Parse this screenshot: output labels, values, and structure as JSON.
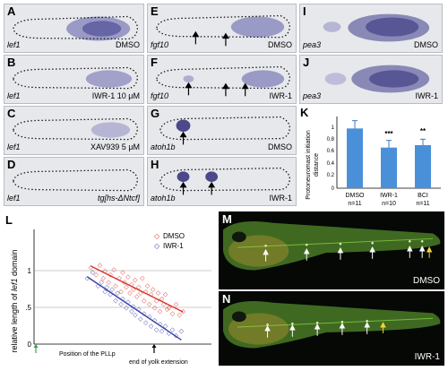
{
  "figure": {
    "panel_A": {
      "label": "A",
      "gene": "lef1",
      "treatment": "DMSO"
    },
    "panel_B": {
      "label": "B",
      "gene": "lef1",
      "treatment": "IWR-1 10 μM"
    },
    "panel_C": {
      "label": "C",
      "gene": "lef1",
      "treatment": "XAV939 5 μM"
    },
    "panel_D": {
      "label": "D",
      "gene": "lef1",
      "treatment": "tg[hs-ΔNtcf]"
    },
    "panel_E": {
      "label": "E",
      "gene": "fgf10",
      "treatment": "DMSO"
    },
    "panel_F": {
      "label": "F",
      "gene": "fgf10",
      "treatment": "IWR-1"
    },
    "panel_G": {
      "label": "G",
      "gene": "atoh1b",
      "treatment": "DMSO"
    },
    "panel_H": {
      "label": "H",
      "gene": "atoh1b",
      "treatment": "IWR-1"
    },
    "panel_I": {
      "label": "I",
      "gene": "pea3",
      "treatment": "DMSO"
    },
    "panel_J": {
      "label": "J",
      "gene": "pea3",
      "treatment": "IWR-1"
    },
    "panel_M": {
      "label": "M",
      "treatment": "DMSO"
    },
    "panel_N": {
      "label": "N",
      "treatment": "IWR-1"
    },
    "panel_K": {
      "label": "K",
      "ylabel_line1": "Protoneuromast initiation",
      "ylabel_line2": "distance",
      "ytick_1": "1",
      "ytick_08": "0.8",
      "ytick_06": "0.6",
      "ytick_04": "0.4",
      "ytick_02": "0.2",
      "ytick_0": "0",
      "cat_0": "DMSO",
      "n_0": "n=11",
      "cat_1": "IWR-1",
      "n_1": "n=10",
      "cat_2": "BCI",
      "n_2": "n=11",
      "sig_1": "***",
      "sig_2": "**"
    },
    "panel_L": {
      "label": "L",
      "ylabel_pre": "relative length of ",
      "ylabel_gene": "lef1",
      "ylabel_post": " domain",
      "ytick_1": "1",
      "ytick_05": ".5",
      "ytick_0": "0",
      "legend_dmso": "DMSO",
      "legend_iwr": "IWR-1",
      "xlabel_pllp": "Position of the PLLp",
      "xlabel_yolk": "end of yolk extension"
    }
  },
  "chart_data": [
    {
      "type": "bar",
      "title": "",
      "ylabel": "Protoneuromast initiation distance",
      "categories": [
        "DMSO",
        "IWR-1",
        "BCI"
      ],
      "n": [
        "n=11",
        "n=10",
        "n=11"
      ],
      "values": [
        1.0,
        0.68,
        0.72
      ],
      "errors": [
        0.13,
        0.12,
        0.1
      ],
      "significance": [
        "",
        "***",
        "**"
      ],
      "ylim": [
        0,
        1.2
      ],
      "color": "#4a90d9"
    },
    {
      "type": "scatter",
      "ylabel": "relative length of lef1 domain",
      "xlabel": "Position of the PLLp",
      "ylim": [
        0,
        1.3
      ],
      "xlim": [
        0,
        10
      ],
      "series": [
        {
          "name": "DMSO",
          "color": "#d9352b",
          "x": [
            3.2,
            3.5,
            3.7,
            3.9,
            4.0,
            4.2,
            4.3,
            4.5,
            4.6,
            4.8,
            4.9,
            5.0,
            5.1,
            5.2,
            5.3,
            5.4,
            5.5,
            5.6,
            5.7,
            5.8,
            5.9,
            6.0,
            6.1,
            6.2,
            6.3,
            6.4,
            6.5,
            6.6,
            6.7,
            6.8,
            6.9,
            7.0,
            7.1,
            7.2,
            7.3,
            7.4,
            7.5,
            7.6,
            7.8,
            8.0,
            8.2,
            8.4
          ],
          "y": [
            1.05,
            0.95,
            1.08,
            0.9,
            1.0,
            0.85,
            0.95,
            1.02,
            0.8,
            0.9,
            0.72,
            0.98,
            0.85,
            0.78,
            0.92,
            0.7,
            0.82,
            0.75,
            0.88,
            0.65,
            0.78,
            0.7,
            0.9,
            0.6,
            0.72,
            0.8,
            0.55,
            0.68,
            0.75,
            0.5,
            0.6,
            0.7,
            0.45,
            0.62,
            0.55,
            0.68,
            0.48,
            0.5,
            0.42,
            0.55,
            0.4,
            0.45
          ]
        },
        {
          "name": "IWR-1",
          "color": "#3a3fa8",
          "x": [
            3.0,
            3.3,
            3.6,
            3.8,
            4.0,
            4.1,
            4.3,
            4.4,
            4.6,
            4.7,
            4.9,
            5.0,
            5.2,
            5.3,
            5.5,
            5.6,
            5.7,
            5.9,
            6.0,
            6.2,
            6.3,
            6.5,
            6.6,
            6.8,
            6.9,
            7.1,
            7.2,
            7.4,
            7.6,
            7.8,
            8.0,
            8.3
          ],
          "y": [
            0.9,
            0.98,
            0.8,
            0.85,
            0.72,
            0.78,
            0.68,
            0.75,
            0.6,
            0.7,
            0.55,
            0.62,
            0.5,
            0.58,
            0.45,
            0.52,
            0.4,
            0.48,
            0.35,
            0.42,
            0.3,
            0.38,
            0.25,
            0.33,
            0.2,
            0.28,
            0.18,
            0.25,
            0.15,
            0.2,
            0.12,
            0.18
          ]
        }
      ]
    }
  ]
}
